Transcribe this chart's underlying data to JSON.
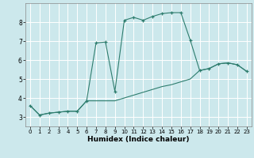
{
  "title": "",
  "xlabel": "Humidex (Indice chaleur)",
  "background_color": "#cce8ec",
  "grid_color": "#ffffff",
  "line_color": "#2e7d6e",
  "xlim": [
    -0.5,
    23.5
  ],
  "ylim": [
    2.5,
    9.0
  ],
  "xticks": [
    0,
    1,
    2,
    3,
    4,
    5,
    6,
    7,
    8,
    9,
    10,
    11,
    12,
    13,
    14,
    15,
    16,
    17,
    18,
    19,
    20,
    21,
    22,
    23
  ],
  "yticks": [
    3,
    4,
    5,
    6,
    7,
    8
  ],
  "curve1_x": [
    0,
    1,
    2,
    3,
    4,
    5,
    6,
    7,
    8,
    9,
    10,
    11,
    12,
    13,
    14,
    15,
    16,
    17,
    18,
    19,
    20,
    21,
    22,
    23
  ],
  "curve1_y": [
    3.6,
    3.1,
    3.2,
    3.25,
    3.3,
    3.3,
    3.85,
    6.9,
    6.95,
    4.35,
    8.1,
    8.25,
    8.1,
    8.3,
    8.45,
    8.5,
    8.5,
    7.05,
    5.45,
    5.55,
    5.8,
    5.85,
    5.75,
    5.4
  ],
  "curve2_x": [
    0,
    1,
    2,
    3,
    4,
    5,
    6,
    7,
    8,
    9,
    10,
    11,
    12,
    13,
    14,
    15,
    16,
    17,
    18,
    19,
    20,
    21,
    22,
    23
  ],
  "curve2_y": [
    3.6,
    3.1,
    3.2,
    3.25,
    3.3,
    3.3,
    3.85,
    3.85,
    3.85,
    3.85,
    4.0,
    4.15,
    4.3,
    4.45,
    4.6,
    4.7,
    4.85,
    5.0,
    5.45,
    5.55,
    5.8,
    5.85,
    5.75,
    5.4
  ],
  "figwidth": 3.2,
  "figheight": 2.0,
  "dpi": 100
}
